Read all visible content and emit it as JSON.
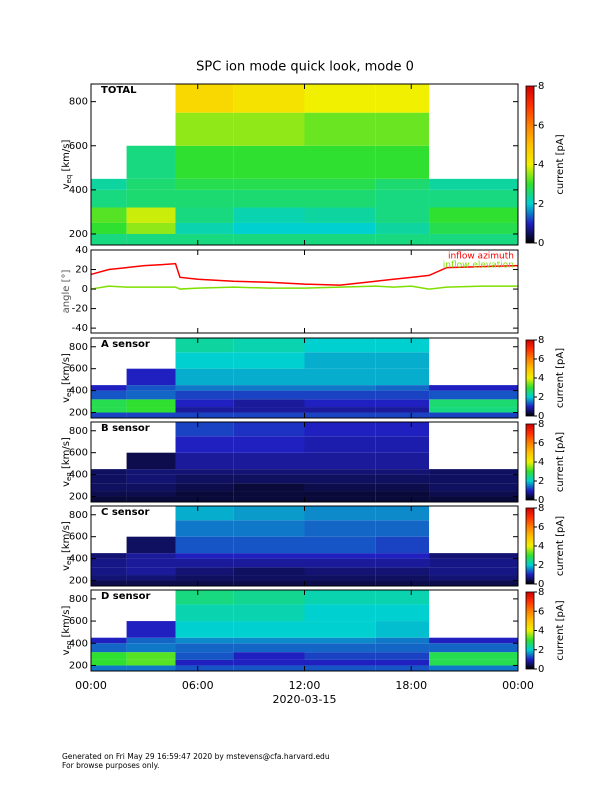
{
  "title": "SPC ion mode quick look, mode 0",
  "footer": {
    "lines": [
      "Generated on Fri May 29 16:59:47 2020 by mstevens@cfa.harvard.edu",
      "For browse purposes only."
    ]
  },
  "chart_data": [
    {
      "type": "heatmap",
      "label": "TOTAL",
      "y_label": [
        "v",
        "eq",
        " [km/s]"
      ],
      "x_edges": [
        0,
        2,
        4.75,
        8,
        12,
        16,
        19,
        24
      ],
      "y_edges": [
        150,
        200,
        250,
        320,
        400,
        450,
        600,
        750,
        880
      ],
      "z": [
        [
          2.5,
          2.5,
          2.5,
          2.5,
          2.5,
          2.5,
          2.5
        ],
        [
          3,
          3.5,
          2.2,
          2,
          2,
          2.3,
          2.8
        ],
        [
          3.2,
          3.8,
          2.5,
          2.2,
          2.3,
          2.5,
          3
        ],
        [
          2.5,
          2.6,
          2.6,
          2.6,
          2.6,
          2.5,
          2.5
        ],
        [
          2.3,
          2.6,
          2.8,
          2.8,
          2.8,
          2.6,
          2.3
        ],
        [
          null,
          2.5,
          3,
          3,
          3,
          3,
          null
        ],
        [
          null,
          null,
          3.5,
          3.5,
          3.3,
          3.3,
          null
        ],
        [
          null,
          null,
          4.5,
          4.3,
          4,
          4,
          null
        ]
      ],
      "ylim": [
        150,
        880
      ],
      "yticks": [
        200,
        400,
        600,
        800
      ],
      "zlim": [
        0,
        8
      ],
      "zticks": [
        0,
        2,
        4,
        6,
        8
      ],
      "z_label": "current [pA]",
      "colorscale": [
        "#000000",
        "#2020c0",
        "#00d0d0",
        "#30e030",
        "#f0f000",
        "#ffc000",
        "#ff8000",
        "#ff3000",
        "#d00000"
      ]
    },
    {
      "type": "line",
      "y_label": "angle [°]",
      "x": [
        0,
        1,
        2,
        3,
        4,
        4.75,
        5,
        6,
        8,
        10,
        12,
        14,
        16,
        17,
        18,
        19,
        20,
        22,
        24
      ],
      "series": [
        {
          "name": "inflow azimuth",
          "color": "#ff0000",
          "values": [
            15,
            20,
            22,
            24,
            25,
            26,
            12,
            10,
            8,
            7,
            5,
            4,
            8,
            10,
            12,
            14,
            22,
            23,
            24
          ]
        },
        {
          "name": "inflow elevation",
          "color": "#7fdf00",
          "values": [
            0,
            3,
            2,
            2,
            2,
            2,
            0,
            1,
            2,
            1,
            1,
            2,
            3,
            2,
            3,
            0,
            2,
            3,
            3
          ]
        }
      ],
      "ylim": [
        -45,
        40
      ],
      "yticks": [
        -40,
        -20,
        0,
        20,
        40
      ]
    },
    {
      "type": "heatmap",
      "label": "A sensor",
      "y_label": [
        "v",
        "eq",
        " [km/s]"
      ],
      "x_edges": [
        0,
        2,
        4.75,
        8,
        12,
        16,
        19,
        24
      ],
      "y_edges": [
        150,
        200,
        250,
        320,
        400,
        450,
        600,
        750,
        880
      ],
      "z": [
        [
          1.2,
          1.2,
          1.2,
          1.2,
          1.2,
          1.2,
          1.2
        ],
        [
          2.8,
          3,
          0.8,
          0.8,
          0.8,
          0.8,
          2.5
        ],
        [
          2.8,
          3,
          1,
          0.8,
          1,
          1,
          2.6
        ],
        [
          1.3,
          1.4,
          1.2,
          1.2,
          1.2,
          1.2,
          1.3
        ],
        [
          1,
          1.3,
          1.5,
          1.5,
          1.5,
          1.4,
          1
        ],
        [
          null,
          1,
          1.8,
          1.8,
          1.8,
          1.8,
          null
        ],
        [
          null,
          null,
          2,
          2,
          1.8,
          1.8,
          null
        ],
        [
          null,
          null,
          2.3,
          2.2,
          2,
          2,
          null
        ]
      ],
      "ylim": [
        150,
        880
      ],
      "yticks": [
        200,
        400,
        600,
        800
      ],
      "zlim": [
        0,
        8
      ],
      "zticks": [
        0,
        2,
        4,
        6,
        8
      ],
      "z_label": "current [pA]",
      "colorscale": [
        "#000000",
        "#2020c0",
        "#00d0d0",
        "#30e030",
        "#f0f000",
        "#ffc000",
        "#ff8000",
        "#ff3000",
        "#d00000"
      ]
    },
    {
      "type": "heatmap",
      "label": "B sensor",
      "y_label": [
        "v",
        "eq",
        " [km/s]"
      ],
      "x_edges": [
        0,
        2,
        4.75,
        8,
        12,
        16,
        19,
        24
      ],
      "y_edges": [
        150,
        200,
        250,
        320,
        400,
        450,
        600,
        750,
        880
      ],
      "z": [
        [
          0.3,
          0.3,
          0.3,
          0.3,
          0.3,
          0.3,
          0.3
        ],
        [
          0.4,
          0.4,
          0.3,
          0.3,
          0.3,
          0.3,
          0.4
        ],
        [
          0.5,
          0.5,
          0.4,
          0.3,
          0.4,
          0.4,
          0.5
        ],
        [
          0.5,
          0.6,
          0.5,
          0.5,
          0.5,
          0.5,
          0.5
        ],
        [
          0.5,
          0.6,
          0.6,
          0.6,
          0.6,
          0.6,
          0.5
        ],
        [
          null,
          0.4,
          0.8,
          0.8,
          0.8,
          0.8,
          null
        ],
        [
          null,
          null,
          1,
          1,
          0.9,
          0.9,
          null
        ],
        [
          null,
          null,
          1.2,
          1.1,
          1,
          1,
          null
        ]
      ],
      "ylim": [
        150,
        880
      ],
      "yticks": [
        200,
        400,
        600,
        800
      ],
      "zlim": [
        0,
        8
      ],
      "zticks": [
        0,
        2,
        4,
        6,
        8
      ],
      "z_label": "current [pA]",
      "colorscale": [
        "#000000",
        "#2020c0",
        "#00d0d0",
        "#30e030",
        "#f0f000",
        "#ffc000",
        "#ff8000",
        "#ff3000",
        "#d00000"
      ]
    },
    {
      "type": "heatmap",
      "label": "C sensor",
      "y_label": [
        "v",
        "eq",
        " [km/s]"
      ],
      "x_edges": [
        0,
        2,
        4.75,
        8,
        12,
        16,
        19,
        24
      ],
      "y_edges": [
        150,
        200,
        250,
        320,
        400,
        450,
        600,
        750,
        880
      ],
      "z": [
        [
          0.4,
          0.4,
          0.4,
          0.4,
          0.4,
          0.4,
          0.4
        ],
        [
          0.6,
          0.6,
          0.5,
          0.5,
          0.5,
          0.5,
          0.6
        ],
        [
          0.7,
          0.8,
          0.6,
          0.5,
          0.6,
          0.6,
          0.7
        ],
        [
          0.7,
          0.8,
          0.8,
          0.8,
          0.8,
          0.8,
          0.7
        ],
        [
          0.6,
          0.8,
          1,
          1,
          1,
          1,
          0.6
        ],
        [
          null,
          0.5,
          1.3,
          1.3,
          1.3,
          1.2,
          null
        ],
        [
          null,
          null,
          1.5,
          1.5,
          1.4,
          1.4,
          null
        ],
        [
          null,
          null,
          1.8,
          1.7,
          1.6,
          1.6,
          null
        ]
      ],
      "ylim": [
        150,
        880
      ],
      "yticks": [
        200,
        400,
        600,
        800
      ],
      "zlim": [
        0,
        8
      ],
      "zticks": [
        0,
        2,
        4,
        6,
        8
      ],
      "z_label": "current [pA]",
      "colorscale": [
        "#000000",
        "#2020c0",
        "#00d0d0",
        "#30e030",
        "#f0f000",
        "#ffc000",
        "#ff8000",
        "#ff3000",
        "#d00000"
      ]
    },
    {
      "type": "heatmap",
      "label": "D sensor",
      "y_label": [
        "v",
        "eq",
        " [km/s]"
      ],
      "x_edges": [
        0,
        2,
        4.75,
        8,
        12,
        16,
        19,
        24
      ],
      "y_edges": [
        150,
        200,
        250,
        320,
        400,
        450,
        600,
        750,
        880
      ],
      "z": [
        [
          1.5,
          1.5,
          1.3,
          1.3,
          1.3,
          1.3,
          1.5
        ],
        [
          3,
          3.2,
          1,
          1,
          1,
          1,
          2.8
        ],
        [
          3,
          3.2,
          1.3,
          1,
          1.2,
          1.2,
          2.8
        ],
        [
          1.4,
          1.5,
          1.4,
          1.4,
          1.4,
          1.4,
          1.4
        ],
        [
          1,
          1.4,
          1.6,
          1.6,
          1.6,
          1.5,
          1
        ],
        [
          null,
          1,
          2,
          2,
          2,
          1.9,
          null
        ],
        [
          null,
          null,
          2.2,
          2.2,
          2,
          2,
          null
        ],
        [
          null,
          null,
          2.5,
          2.4,
          2.2,
          2.2,
          null
        ]
      ],
      "ylim": [
        150,
        880
      ],
      "yticks": [
        200,
        400,
        600,
        800
      ],
      "zlim": [
        0,
        8
      ],
      "zticks": [
        0,
        2,
        4,
        6,
        8
      ],
      "z_label": "current [pA]",
      "colorscale": [
        "#000000",
        "#2020c0",
        "#00d0d0",
        "#30e030",
        "#f0f000",
        "#ffc000",
        "#ff8000",
        "#ff3000",
        "#d00000"
      ],
      "xlim": [
        0,
        24
      ],
      "xticks": [
        {
          "value": 0,
          "label": "00:00"
        },
        {
          "value": 6,
          "label": "06:00"
        },
        {
          "value": 12,
          "label": "12:00"
        },
        {
          "value": 18,
          "label": "18:00"
        },
        {
          "value": 24,
          "label": "00:00"
        }
      ],
      "x_label": "2020-03-15"
    }
  ]
}
